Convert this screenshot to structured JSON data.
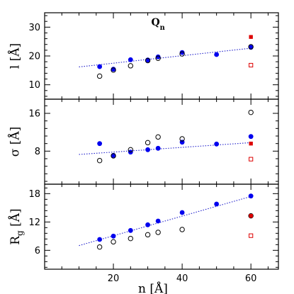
{
  "chart_data": {
    "type": "scatter",
    "title": "Q_n",
    "xlabel": "n [Å]",
    "xlim": [
      0,
      68
    ],
    "xticks": [
      20,
      40,
      60
    ],
    "shared_x": true,
    "colors": {
      "filled": "#0000ee",
      "open": "#000000",
      "red": "#dd0000",
      "fit": "#2222cc"
    },
    "panels": [
      {
        "ylabel": "l [Å]",
        "ylim": [
          5,
          35
        ],
        "yticks": [
          10,
          20,
          30
        ],
        "annotation": "Q_n",
        "series": [
          {
            "marker": "filled-circle",
            "color": "filled",
            "x": [
              16,
              20,
              25,
              30,
              33,
              40,
              50,
              60
            ],
            "y": [
              16.3,
              15.4,
              18.7,
              18.6,
              19.7,
              21.2,
              20.5,
              23.0
            ]
          },
          {
            "marker": "open-circle",
            "color": "open",
            "x": [
              16,
              20,
              25,
              30,
              33,
              40,
              60
            ],
            "y": [
              13.0,
              15.1,
              16.6,
              18.4,
              19.2,
              20.7,
              23.2
            ]
          },
          {
            "marker": "filled-square",
            "color": "red",
            "x": [
              60
            ],
            "y": [
              26.6
            ]
          },
          {
            "marker": "open-square",
            "color": "red",
            "x": [
              60
            ],
            "y": [
              16.8
            ]
          }
        ],
        "fit": {
          "x": [
            10,
            60
          ],
          "y": [
            16.2,
            22.7
          ]
        }
      },
      {
        "ylabel": "σ [Å]",
        "ylim": [
          1,
          19
        ],
        "yticks": [
          8,
          16
        ],
        "series": [
          {
            "marker": "filled-circle",
            "color": "filled",
            "x": [
              16,
              20,
              25,
              30,
              33,
              40,
              50,
              60
            ],
            "y": [
              9.6,
              7.1,
              7.8,
              8.3,
              8.6,
              9.9,
              9.5,
              11.1
            ]
          },
          {
            "marker": "open-circle",
            "color": "open",
            "x": [
              16,
              20,
              25,
              30,
              33,
              40,
              60
            ],
            "y": [
              6.0,
              7.0,
              8.3,
              9.8,
              11.0,
              10.6,
              16.2
            ]
          },
          {
            "marker": "filled-square",
            "color": "red",
            "x": [
              60
            ],
            "y": [
              9.6
            ]
          },
          {
            "marker": "open-square",
            "color": "red",
            "x": [
              60
            ],
            "y": [
              6.3
            ]
          }
        ],
        "fit": {
          "x": [
            10,
            60
          ],
          "y": [
            7.3,
            9.8
          ]
        }
      },
      {
        "ylabel": "R_g [Å]",
        "ylim": [
          2,
          20
        ],
        "yticks": [
          6,
          12,
          18
        ],
        "series": [
          {
            "marker": "filled-circle",
            "color": "filled",
            "x": [
              16,
              20,
              25,
              30,
              33,
              40,
              50,
              60
            ],
            "y": [
              8.3,
              9.0,
              10.2,
              11.4,
              12.2,
              14.0,
              15.8,
              17.5
            ]
          },
          {
            "marker": "open-circle",
            "color": "open",
            "x": [
              16,
              20,
              25,
              30,
              33,
              40,
              60
            ],
            "y": [
              6.7,
              7.8,
              8.5,
              9.3,
              9.8,
              10.4,
              13.3
            ]
          },
          {
            "marker": "filled-square",
            "color": "red",
            "x": [
              60
            ],
            "y": [
              13.3
            ]
          },
          {
            "marker": "open-square",
            "color": "red",
            "x": [
              60
            ],
            "y": [
              9.1
            ]
          }
        ],
        "fit": {
          "x": [
            10,
            60
          ],
          "y": [
            7.0,
            17.4
          ]
        }
      }
    ]
  }
}
